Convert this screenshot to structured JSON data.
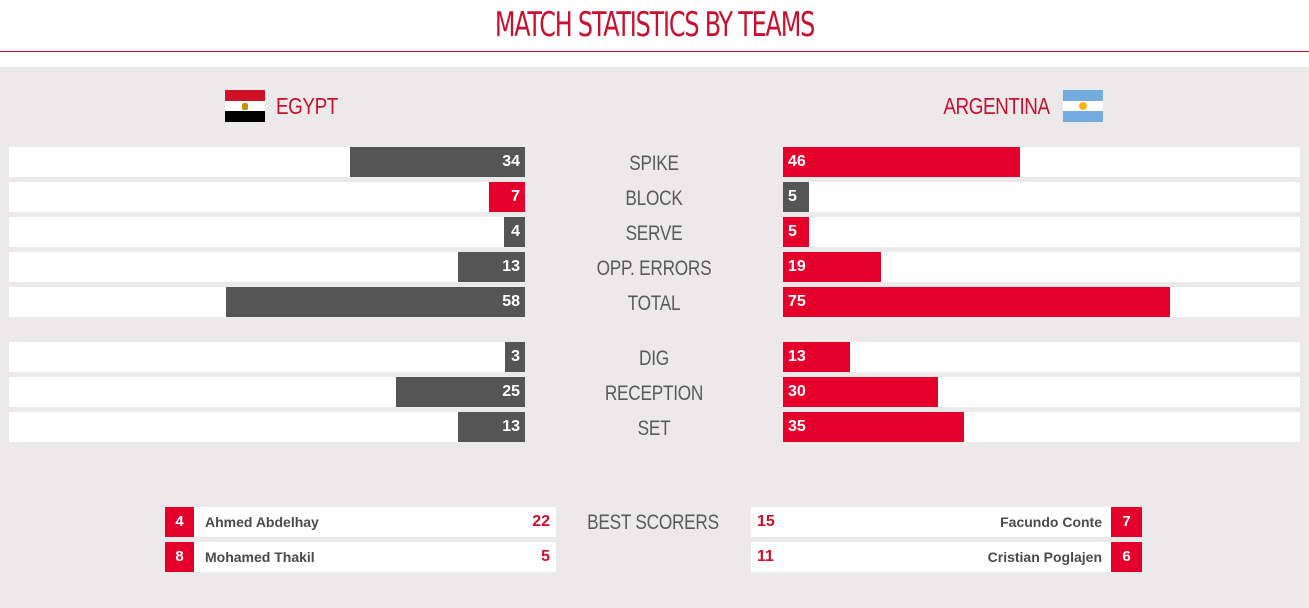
{
  "title": "MATCH STATISTICS BY TEAMS",
  "teams": {
    "left": {
      "name": "EGYPT",
      "bar_color": "#555555",
      "flag_colors": [
        "#ce1126",
        "#ffffff",
        "#000000"
      ]
    },
    "right": {
      "name": "ARGENTINA",
      "bar_color": "#e4002b",
      "flag_colors": [
        "#74acdf",
        "#ffffff",
        "#74acdf"
      ]
    }
  },
  "max_value": 100,
  "stats_attack": [
    {
      "label": "SPIKE",
      "left": 34,
      "right": 46,
      "left_leading": false
    },
    {
      "label": "BLOCK",
      "left": 7,
      "right": 5,
      "left_leading": true
    },
    {
      "label": "SERVE",
      "left": 4,
      "right": 5,
      "left_leading": false
    },
    {
      "label": "OPP. ERRORS",
      "left": 13,
      "right": 19,
      "left_leading": false
    },
    {
      "label": "TOTAL",
      "left": 58,
      "right": 75,
      "left_leading": false
    }
  ],
  "stats_defense": [
    {
      "label": "DIG",
      "left": 3,
      "right": 13,
      "left_leading": false
    },
    {
      "label": "RECEPTION",
      "left": 25,
      "right": 30,
      "left_leading": false
    },
    {
      "label": "SET",
      "left": 13,
      "right": 35,
      "left_leading": false
    }
  ],
  "leading_color": "#e4002b",
  "trailing_color": "#555555",
  "best_scorers": {
    "label": "BEST SCORERS",
    "left": [
      {
        "number": "4",
        "name": "Ahmed Abdelhay",
        "points": "22"
      },
      {
        "number": "8",
        "name": "Mohamed Thakil",
        "points": "5"
      }
    ],
    "right": [
      {
        "number": "7",
        "name": "Facundo Conte",
        "points": "15"
      },
      {
        "number": "6",
        "name": "Cristian Poglajen",
        "points": "11"
      }
    ]
  }
}
